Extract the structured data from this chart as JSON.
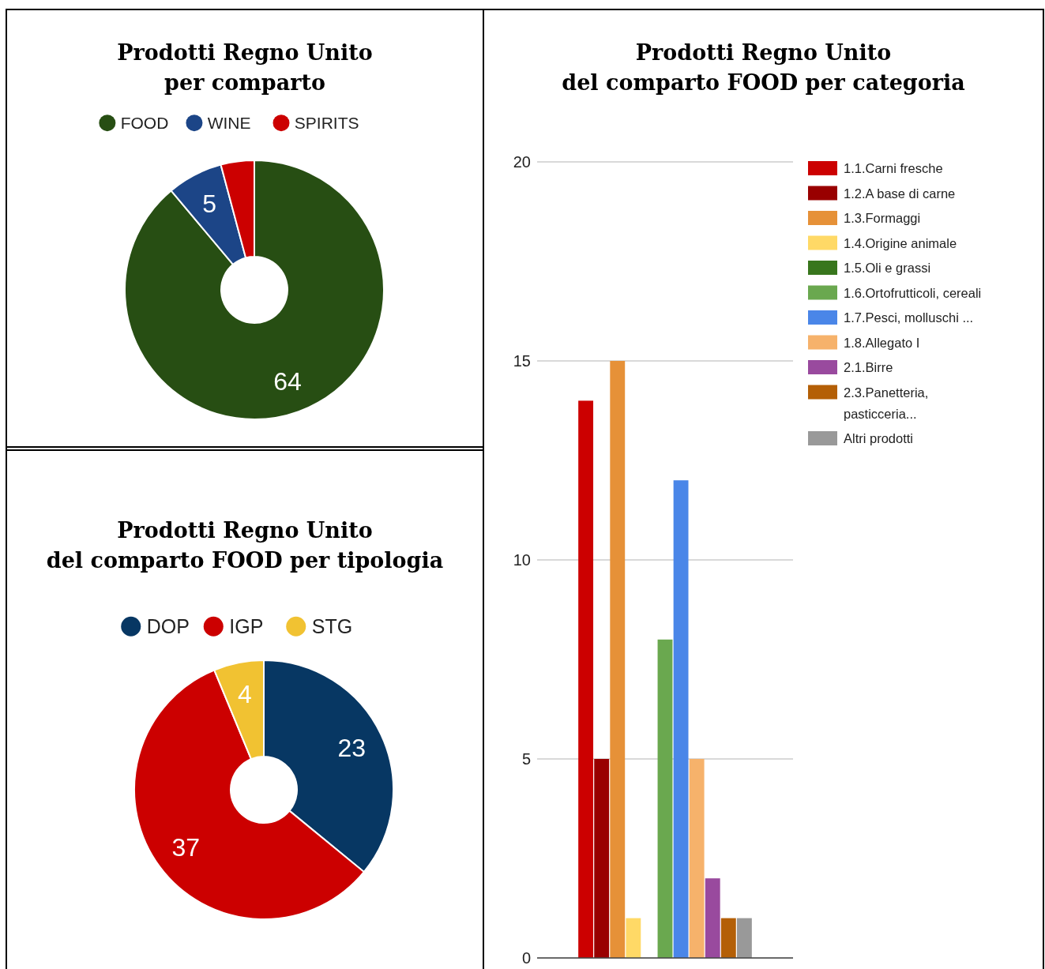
{
  "chart_data": [
    {
      "type": "donut",
      "title": "Prodotti Regno Unito\nper comparto",
      "categories": [
        "FOOD",
        "WINE",
        "SPIRITS"
      ],
      "values": [
        64,
        5,
        3
      ],
      "colors": [
        "#274e13",
        "#1c4587",
        "#cc0000"
      ],
      "value_labels": [
        "64",
        "5",
        null
      ],
      "legend": "top"
    },
    {
      "type": "donut",
      "title": "Prodotti Regno Unito\ndel comparto FOOD per tipologia",
      "categories": [
        "DOP",
        "IGP",
        "STG"
      ],
      "values": [
        23,
        37,
        4
      ],
      "colors": [
        "#073763",
        "#cc0000",
        "#f1c232"
      ],
      "data_labels": true,
      "legend": "top"
    },
    {
      "type": "bar",
      "title": "Prodotti Regno Unito\ndel comparto FOOD per categoria",
      "categories": [
        null
      ],
      "ylim": [
        0,
        20
      ],
      "yticks": [
        0,
        5,
        10,
        15,
        20
      ],
      "grid": "y",
      "legend": "right",
      "tick_labels": "y",
      "series": [
        {
          "name": "1.1.Carni fresche",
          "color": "#cc0000",
          "values": [
            14
          ]
        },
        {
          "name": "1.2.A base di carne",
          "color": "#990000",
          "values": [
            5
          ]
        },
        {
          "name": "1.3.Formaggi",
          "color": "#e69138",
          "values": [
            15
          ]
        },
        {
          "name": "1.4.Origine animale",
          "color": "#ffd966",
          "values": [
            1
          ]
        },
        {
          "name": "1.5.Oli e grassi",
          "color": "#38761d",
          "values": [
            0
          ]
        },
        {
          "name": "1.6.Ortofrutticoli, cereali",
          "color": "#6aa84f",
          "values": [
            8
          ]
        },
        {
          "name": "1.7.Pesci, molluschi ...",
          "color": "#4a86e8",
          "values": [
            12
          ]
        },
        {
          "name": "1.8.Allegato I",
          "color": "#f6b26b",
          "values": [
            5
          ]
        },
        {
          "name": "2.1.Birre",
          "color": "#994a9e",
          "values": [
            2
          ]
        },
        {
          "name": "2.3.Panetteria, pasticceria...",
          "color": "#b45f06",
          "values": [
            1
          ]
        },
        {
          "name": "Altri prodotti",
          "color": "#999999",
          "values": [
            1
          ]
        }
      ]
    }
  ]
}
